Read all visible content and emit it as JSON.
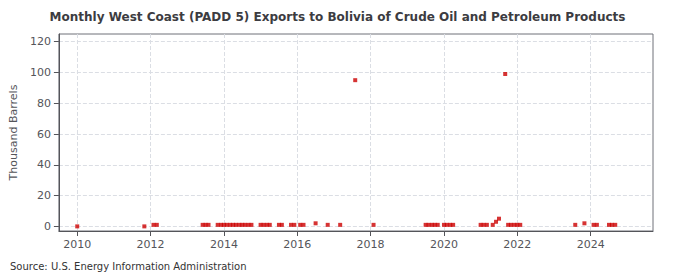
{
  "chart_data": {
    "type": "scatter",
    "title": "Monthly West Coast (PADD 5) Exports to Bolivia of Crude Oil and Petroleum Products",
    "ylabel": "Thousand Barrels",
    "annotations": [
      "Source: U.S. Energy Information Administration"
    ],
    "color": "#cc0000",
    "marker": "square",
    "grid": true,
    "xlim": [
      2009.5,
      2025.7
    ],
    "ylim": [
      -3,
      125
    ],
    "xticks": [
      2010,
      2012,
      2014,
      2016,
      2018,
      2020,
      2022,
      2024
    ],
    "yticks": [
      0,
      20,
      40,
      60,
      80,
      100,
      120
    ],
    "x": [
      2010.0,
      2011.83,
      2012.08,
      2012.17,
      2013.42,
      2013.5,
      2013.58,
      2013.83,
      2013.92,
      2014.0,
      2014.08,
      2014.17,
      2014.25,
      2014.33,
      2014.42,
      2014.5,
      2014.58,
      2014.67,
      2014.75,
      2015.0,
      2015.08,
      2015.17,
      2015.25,
      2015.5,
      2015.58,
      2015.83,
      2015.92,
      2016.08,
      2016.17,
      2016.5,
      2016.83,
      2017.17,
      2017.58,
      2018.08,
      2019.5,
      2019.58,
      2019.67,
      2019.75,
      2019.83,
      2020.0,
      2020.08,
      2020.17,
      2020.25,
      2021.0,
      2021.08,
      2021.17,
      2021.33,
      2021.42,
      2021.5,
      2021.67,
      2021.75,
      2021.83,
      2021.92,
      2022.0,
      2022.08,
      2023.58,
      2023.83,
      2024.08,
      2024.17,
      2024.5,
      2024.58,
      2024.67
    ],
    "values": [
      0,
      0,
      1,
      1,
      1,
      1,
      1,
      1,
      1,
      1,
      1,
      1,
      1,
      1,
      1,
      1,
      1,
      1,
      1,
      1,
      1,
      1,
      1,
      1,
      1,
      1,
      1,
      1,
      1,
      2,
      1,
      1,
      95,
      1,
      1,
      1,
      1,
      1,
      1,
      1,
      1,
      1,
      1,
      1,
      1,
      1,
      1,
      3,
      5,
      99,
      1,
      1,
      1,
      1,
      1,
      1,
      2,
      1,
      1,
      1,
      1,
      1
    ]
  }
}
